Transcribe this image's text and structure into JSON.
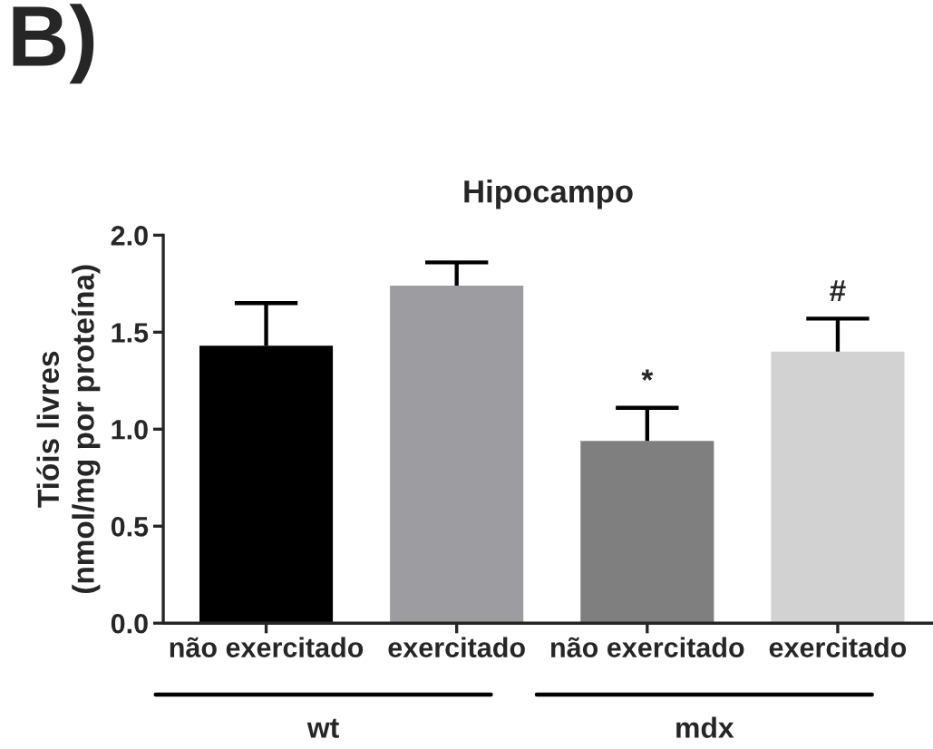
{
  "chart_data": {
    "type": "bar",
    "title": "Hipocampo",
    "ylabel": "Tióis livres\n(nmol/mg por proteína)",
    "categories": [
      "não exercitado",
      "exercitado",
      "não exercitado",
      "exercitado"
    ],
    "values": [
      1.43,
      1.74,
      0.94,
      1.4
    ],
    "colors": [
      "#000000",
      "#9d9da1",
      "#7f7f7f",
      "#d2d2d2"
    ],
    "errors": [
      [
        1.43,
        1.65
      ],
      [
        1.74,
        1.86
      ],
      [
        0.94,
        1.11
      ],
      [
        1.4,
        1.57
      ]
    ],
    "value_labels": [
      null,
      null,
      "*",
      "#"
    ],
    "ylim": [
      0,
      2.0
    ],
    "yticks": [
      {
        "value": 0,
        "label": "0.0"
      },
      {
        "value": 0.5,
        "label": "0.5"
      },
      {
        "value": 1.0,
        "label": "1.0"
      },
      {
        "value": 1.5,
        "label": "1.5"
      },
      {
        "value": 2.0,
        "label": "2.0"
      }
    ],
    "annotations": [
      "B)",
      "wt",
      "mdx"
    ]
  }
}
